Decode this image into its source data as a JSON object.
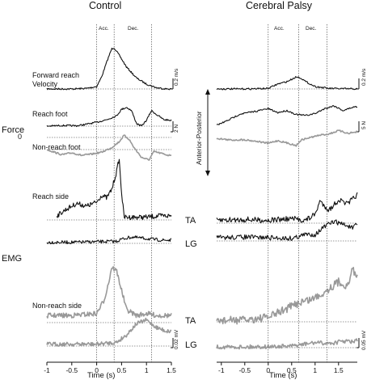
{
  "chart_data": [
    {
      "type": "line",
      "title": "Control",
      "xlabel": "Time (s)",
      "xlim": [
        -1,
        1.5
      ],
      "x_ticks": [
        "-1",
        "-0.5",
        "0",
        "0.5",
        "1",
        "1.5"
      ],
      "phase_labels": [
        "Acc.",
        "Dec."
      ],
      "phase_boundaries_s": [
        0,
        0.35,
        1.1
      ],
      "row_labels": {
        "velocity": [
          "Forward reach",
          "Velocity"
        ],
        "reach_foot": "Reach foot",
        "non_reach_foot": "Non-reach foot",
        "reach_side": "Reach side",
        "non_reach_side": "Non-reach side"
      },
      "scale_bars": {
        "velocity": "0.2 m/s",
        "force": "2 N",
        "emg": "0.02 mV"
      },
      "zero_label": "0",
      "series": [
        {
          "name": "Forward reach Velocity",
          "color": "#111111",
          "x": [
            -1,
            -0.5,
            -0.2,
            0,
            0.1,
            0.2,
            0.3,
            0.35,
            0.45,
            0.6,
            0.8,
            1.0,
            1.2,
            1.4,
            1.5
          ],
          "y": [
            0,
            0,
            0.005,
            0.02,
            0.1,
            0.22,
            0.33,
            0.34,
            0.28,
            0.18,
            0.09,
            0.04,
            0.01,
            0,
            0
          ]
        },
        {
          "name": "Reach foot",
          "color": "#111111",
          "x": [
            -1,
            -0.7,
            -0.4,
            -0.2,
            0,
            0.2,
            0.4,
            0.5,
            0.6,
            0.7,
            0.8,
            0.9,
            1.0,
            1.1,
            1.2,
            1.35,
            1.5
          ],
          "y": [
            0,
            0.1,
            0.05,
            0.3,
            0.6,
            1.0,
            1.6,
            2.6,
            2.9,
            2.4,
            0.4,
            0.0,
            0.9,
            2.4,
            1.8,
            1.0,
            0.9
          ]
        },
        {
          "name": "Non-reach foot",
          "color": "#999999",
          "x": [
            -1,
            -0.7,
            -0.5,
            -0.3,
            -0.1,
            0.1,
            0.3,
            0.45,
            0.55,
            0.65,
            0.75,
            0.9,
            1.05,
            1.15,
            1.3,
            1.45,
            1.5
          ],
          "y": [
            0,
            -0.8,
            -0.5,
            -0.9,
            -0.7,
            -0.4,
            0.3,
            1.2,
            2.2,
            1.6,
            0.3,
            -1.2,
            -1.6,
            -0.3,
            -0.6,
            -0.9,
            -0.8
          ]
        },
        {
          "name": "Reach side TA",
          "color": "#111111",
          "x": [
            -0.8,
            -0.6,
            -0.4,
            -0.2,
            0,
            0.1,
            0.2,
            0.3,
            0.4,
            0.45,
            0.5,
            0.55,
            0.7,
            1.0,
            1.3,
            1.5
          ],
          "y": [
            0.003,
            0.008,
            0.012,
            0.01,
            0.013,
            0.018,
            0.016,
            0.022,
            0.035,
            0.045,
            0.02,
            0.002,
            0.002,
            0.002,
            0.003,
            0.003
          ]
        },
        {
          "name": "Reach side LG",
          "color": "#111111",
          "x": [
            -1,
            -0.5,
            0,
            0.4,
            0.5,
            0.7,
            0.9,
            1.1,
            1.3,
            1.5
          ],
          "y": [
            0.001,
            0.001,
            0.0015,
            0.002,
            0.004,
            0.006,
            0.005,
            0.004,
            0.003,
            0.003
          ]
        },
        {
          "name": "Non-reach side TA",
          "color": "#999999",
          "x": [
            -1,
            -0.5,
            0,
            0.15,
            0.25,
            0.3,
            0.4,
            0.5,
            0.6,
            0.8,
            1.0,
            1.2,
            1.5
          ],
          "y": [
            0.002,
            0.002,
            0.003,
            0.01,
            0.02,
            0.027,
            0.025,
            0.015,
            0.005,
            0.002,
            0.003,
            0.002,
            0.002
          ]
        },
        {
          "name": "Non-reach side LG",
          "color": "#999999",
          "x": [
            -1,
            -0.5,
            0,
            0.4,
            0.6,
            0.8,
            1.0,
            1.2,
            1.4,
            1.5
          ],
          "y": [
            0.001,
            0.001,
            0.001,
            0.002,
            0.006,
            0.012,
            0.014,
            0.01,
            0.008,
            0.008
          ]
        }
      ]
    },
    {
      "type": "line",
      "title": "Cerebral Palsy",
      "xlabel": "Time (s)",
      "xlim": [
        -1.1,
        1.9
      ],
      "x_ticks": [
        "-1",
        "-0.5",
        "0",
        "0.5",
        "1",
        "1.5"
      ],
      "phase_labels": [
        "Acc.",
        "Dec."
      ],
      "phase_boundaries_s": [
        0,
        0.65,
        1.25
      ],
      "axis_label": "Anterior-Posterior",
      "emg_labels": [
        "TA",
        "LG",
        "TA",
        "LG"
      ],
      "scale_bars": {
        "velocity": "0.2 m/s",
        "force": "5 N",
        "emg": "0.05 mV"
      },
      "series": [
        {
          "name": "Forward reach Velocity",
          "color": "#111111",
          "x": [
            -1.1,
            -0.5,
            0,
            0.2,
            0.4,
            0.6,
            0.7,
            0.8,
            1.0,
            1.3,
            1.6,
            1.9
          ],
          "y": [
            0,
            0,
            0.002,
            0.02,
            0.03,
            0.05,
            0.045,
            0.03,
            0.01,
            0.002,
            0.001,
            0
          ]
        },
        {
          "name": "Reach foot",
          "color": "#111111",
          "x": [
            -1.1,
            -0.9,
            -0.6,
            -0.3,
            0,
            0.2,
            0.4,
            0.6,
            0.8,
            1.0,
            1.2,
            1.4,
            1.6,
            1.8,
            1.9
          ],
          "y": [
            0.2,
            1.0,
            2.5,
            3.0,
            3.6,
            2.8,
            3.2,
            2.4,
            2.2,
            2.6,
            3.6,
            4.2,
            3.2,
            3.9,
            4.0
          ]
        },
        {
          "name": "Non-reach foot",
          "color": "#999999",
          "x": [
            -1.1,
            -0.8,
            -0.5,
            -0.2,
            0,
            0.2,
            0.4,
            0.6,
            0.7,
            0.9,
            1.1,
            1.3,
            1.5,
            1.7,
            1.9
          ],
          "y": [
            0.2,
            -0.3,
            -0.2,
            -0.8,
            -1.3,
            -0.5,
            -1.2,
            -2.0,
            -0.3,
            0.5,
            1.2,
            1.6,
            2.6,
            1.8,
            2.2
          ]
        },
        {
          "name": "Reach side TA",
          "color": "#111111",
          "x": [
            -1.1,
            -0.5,
            0,
            0.5,
            0.8,
            1.0,
            1.1,
            1.3,
            1.5,
            1.7,
            1.9
          ],
          "y": [
            0.004,
            0.005,
            0.004,
            0.006,
            0.004,
            0.012,
            0.03,
            0.018,
            0.032,
            0.026,
            0.04
          ]
        },
        {
          "name": "Reach side LG",
          "color": "#111111",
          "x": [
            -1.1,
            -0.5,
            0,
            0.5,
            0.8,
            1.0,
            1.2,
            1.4,
            1.6,
            1.8,
            1.9
          ],
          "y": [
            0.005,
            0.006,
            0.005,
            0.004,
            0.01,
            0.01,
            0.022,
            0.03,
            0.026,
            0.02,
            0.025
          ]
        },
        {
          "name": "Non-reach side TA",
          "color": "#999999",
          "x": [
            -1.1,
            -0.5,
            0,
            0.2,
            0.5,
            0.7,
            0.9,
            1.1,
            1.3,
            1.5,
            1.7,
            1.8,
            1.9
          ],
          "y": [
            0.003,
            0.004,
            0.01,
            0.02,
            0.035,
            0.045,
            0.05,
            0.06,
            0.075,
            0.09,
            0.08,
            0.12,
            0.1
          ]
        },
        {
          "name": "Non-reach side LG",
          "color": "#999999",
          "x": [
            -1.1,
            -0.5,
            0,
            0.5,
            0.8,
            1.0,
            1.2,
            1.4,
            1.6,
            1.8,
            1.9
          ],
          "y": [
            0.002,
            0.002,
            0.003,
            0.004,
            0.01,
            0.014,
            0.012,
            0.013,
            0.018,
            0.016,
            0.02
          ]
        }
      ]
    }
  ],
  "labels": {
    "control_title": "Control",
    "cp_title": "Cerebral Palsy",
    "force": "Force",
    "emg": "EMG",
    "time_axis": "Time (s)",
    "acc": "Acc.",
    "dec": "Dec.",
    "forward_reach": "Forward reach",
    "velocity": "Velocity",
    "reach_foot": "Reach foot",
    "non_reach_foot": "Non-reach foot",
    "reach_side": "Reach side",
    "non_reach_side": "Non-reach side",
    "zero": "0",
    "anterior_posterior": "Anterior-Posterior",
    "ta": "TA",
    "lg": "LG",
    "scale_vel": "0.2 m/s",
    "scale_force_c": "2 N",
    "scale_force_cp": "5 N",
    "scale_emg_c": "0.02 mV",
    "scale_emg_cp": "0.05 mV"
  }
}
